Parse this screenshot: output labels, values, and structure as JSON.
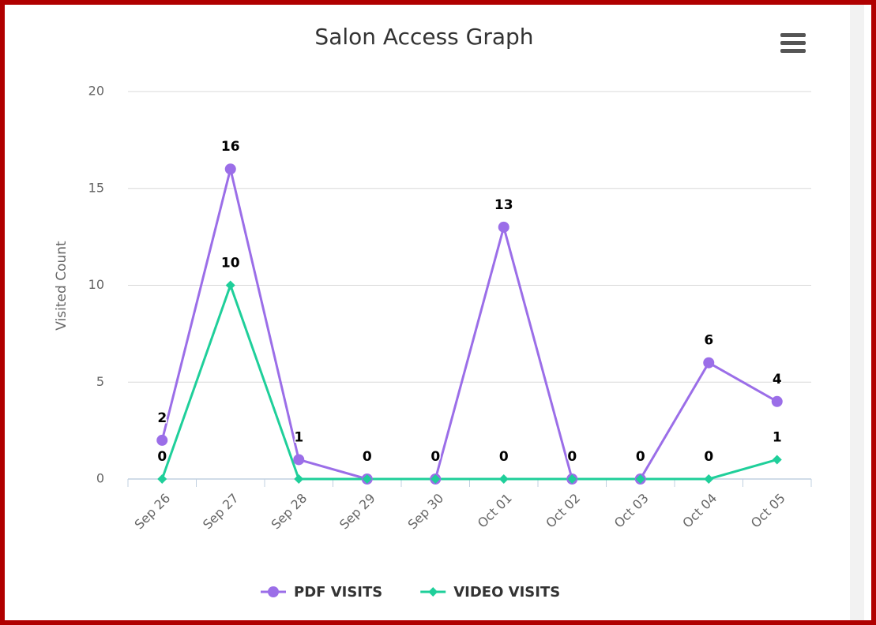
{
  "chart_data": {
    "type": "line",
    "title": "Salon Access Graph",
    "y_axis_label": "Visited Count",
    "categories": [
      "Sep 26",
      "Sep 27",
      "Sep 28",
      "Sep 29",
      "Sep 30",
      "Oct 01",
      "Oct 02",
      "Oct 03",
      "Oct 04",
      "Oct 05"
    ],
    "series": [
      {
        "name": "PDF VISITS",
        "color": "#9b6ee8",
        "values": [
          2,
          16,
          1,
          0,
          0,
          13,
          0,
          0,
          6,
          4
        ]
      },
      {
        "name": "VIDEO VISITS",
        "color": "#1fcf9a",
        "values": [
          0,
          10,
          0,
          0,
          0,
          0,
          0,
          0,
          0,
          1
        ]
      }
    ],
    "ylim": [
      0,
      20
    ],
    "yticks": [
      0,
      5,
      10,
      15,
      20
    ],
    "grid": true
  }
}
